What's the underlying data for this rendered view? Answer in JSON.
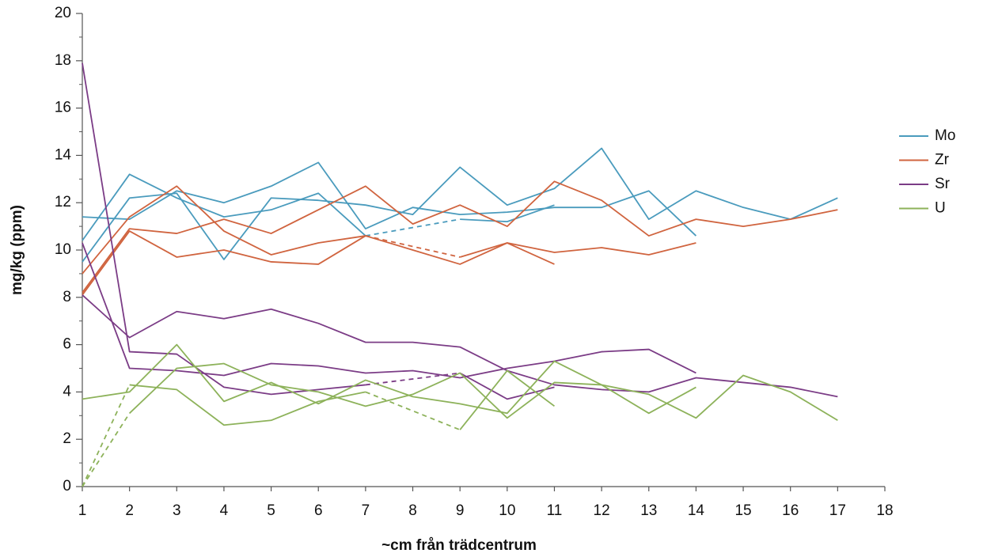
{
  "chart_data": {
    "type": "line",
    "y_label": "mg/kg (ppm)",
    "x_label": "~cm från trädcentrum",
    "x": [
      1,
      2,
      3,
      4,
      5,
      6,
      7,
      8,
      9,
      10,
      11,
      12,
      13,
      14,
      15,
      16,
      17
    ],
    "xlim": [
      1,
      18
    ],
    "xticks": [
      1,
      2,
      3,
      4,
      5,
      6,
      7,
      8,
      9,
      10,
      11,
      12,
      13,
      14,
      15,
      16,
      17,
      18
    ],
    "ylim": [
      0,
      20
    ],
    "yticks": [
      0,
      2,
      4,
      6,
      8,
      10,
      12,
      14,
      16,
      18,
      20
    ],
    "legend": "right",
    "series": [
      {
        "name": "Mo",
        "color": "#4a9bbd",
        "lines": [
          {
            "values": [
              11.4,
              11.3,
              12.5,
              12.0,
              12.7,
              13.7,
              10.9,
              11.8,
              11.5,
              11.6,
              11.8,
              11.8,
              12.5,
              10.6,
              null,
              null,
              null
            ],
            "dashed": []
          },
          {
            "values": [
              10.4,
              13.2,
              12.2,
              11.4,
              11.7,
              12.4,
              10.6,
              null,
              11.3,
              11.2,
              11.9,
              null,
              null,
              null,
              null,
              null,
              null
            ],
            "dashed": []
          },
          {
            "values": [
              9.5,
              12.2,
              12.4,
              9.6,
              12.2,
              12.1,
              11.9,
              11.5,
              13.5,
              11.9,
              12.6,
              14.3,
              11.3,
              12.5,
              11.8,
              11.3,
              12.2
            ],
            "dashed": []
          }
        ]
      },
      {
        "name": "Zr",
        "color": "#d0643f",
        "lines": [
          {
            "values": [
              9.0,
              11.4,
              12.7,
              10.8,
              9.8,
              10.3,
              10.6,
              10.0,
              9.4,
              10.3,
              9.9,
              10.1,
              9.8,
              10.3,
              null,
              null,
              null
            ],
            "dashed": []
          },
          {
            "values": [
              8.2,
              10.9,
              10.7,
              11.3,
              10.7,
              11.7,
              12.7,
              11.1,
              11.9,
              11.0,
              12.9,
              12.1,
              10.6,
              11.3,
              11.0,
              11.3,
              11.7
            ],
            "dashed": []
          },
          {
            "values": [
              8.1,
              10.8,
              9.7,
              10.0,
              9.5,
              9.4,
              10.6,
              null,
              9.7,
              10.3,
              9.4,
              null,
              null,
              null,
              null,
              null,
              null
            ],
            "dashed": []
          }
        ]
      },
      {
        "name": "Sr",
        "color": "#7b3c86",
        "lines": [
          {
            "values": [
              17.9,
              5.7,
              5.6,
              4.2,
              3.9,
              4.1,
              4.3,
              null,
              4.8,
              3.7,
              4.2,
              null,
              null,
              null,
              null,
              null,
              null
            ],
            "dashed": []
          },
          {
            "values": [
              10.3,
              5.0,
              4.9,
              4.7,
              5.2,
              5.1,
              4.8,
              4.9,
              4.6,
              5.0,
              5.3,
              5.7,
              5.8,
              4.8,
              null,
              null,
              null
            ],
            "dashed": []
          },
          {
            "values": [
              8.1,
              6.3,
              7.4,
              7.1,
              7.5,
              6.9,
              6.1,
              6.1,
              5.9,
              4.9,
              4.3,
              4.1,
              4.0,
              4.6,
              4.4,
              4.2,
              3.8
            ],
            "dashed": []
          }
        ]
      },
      {
        "name": "U",
        "color": "#8db25a",
        "lines": [
          {
            "values": [
              3.7,
              4.0,
              6.0,
              3.6,
              4.4,
              3.5,
              4.5,
              3.8,
              3.5,
              3.1,
              5.3,
              4.3,
              3.1,
              4.2,
              null,
              null,
              null
            ],
            "dashed": []
          },
          {
            "values": [
              0,
              4.3,
              4.1,
              2.6,
              2.8,
              3.6,
              4.0,
              null,
              2.4,
              4.9,
              3.4,
              null,
              null,
              null,
              null,
              null,
              null
            ],
            "dashed": [
              0
            ]
          },
          {
            "values": [
              0,
              3.1,
              5.0,
              5.2,
              4.3,
              4.0,
              3.4,
              3.9,
              4.8,
              2.9,
              4.4,
              4.3,
              3.9,
              2.9,
              4.7,
              4.0,
              2.8
            ],
            "dashed": [
              0
            ]
          }
        ]
      }
    ]
  }
}
